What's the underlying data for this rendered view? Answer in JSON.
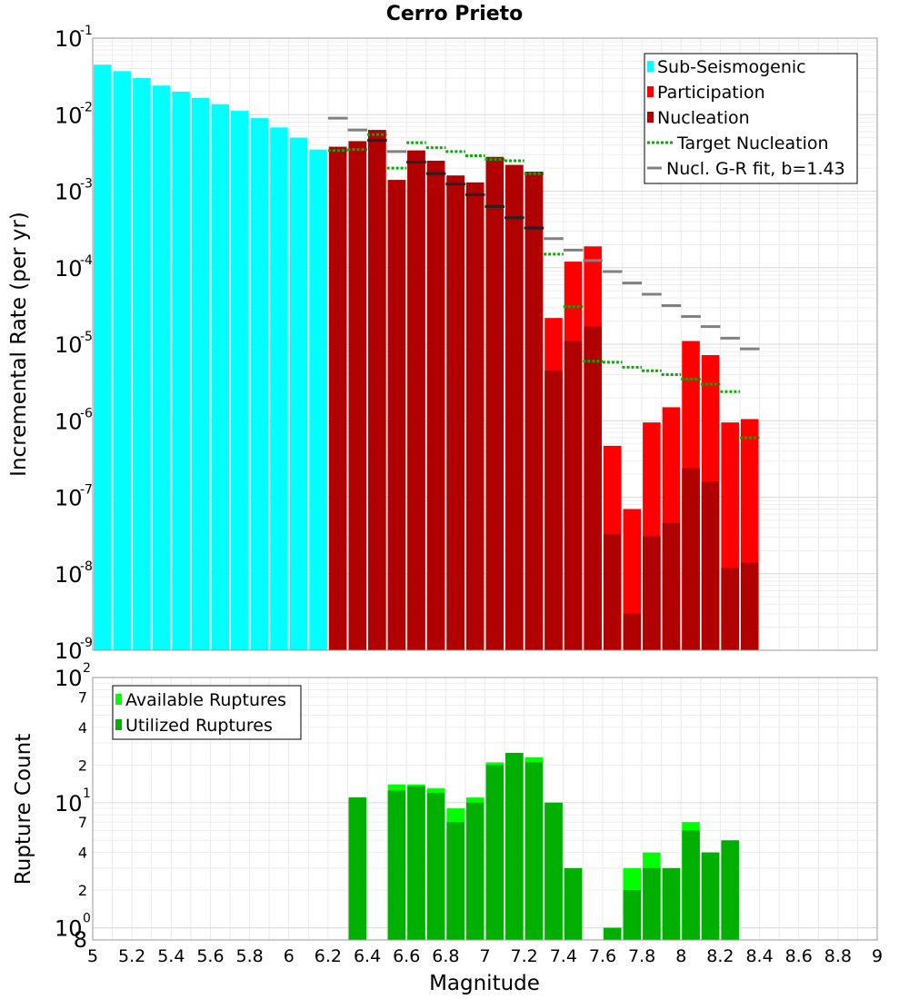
{
  "chart_data": [
    {
      "type": "bar",
      "title": "Cerro Prieto",
      "xlabel": "Magnitude",
      "ylabel": "Incremental Rate (per yr)",
      "yscale": "log",
      "ylim": [
        1e-09,
        0.1
      ],
      "xlim": [
        5.0,
        9.0
      ],
      "grid": true,
      "legend_position": "top-right",
      "bin_width": 0.1,
      "colors": {
        "sub_seismogenic": "#00ffff",
        "participation": "#ff0000",
        "nucleation": "#b00000",
        "target_nucleation": "#00b000",
        "gr_fit": "#808080"
      },
      "legend": [
        "Sub-Seismogenic",
        "Participation",
        "Nucleation",
        "Target Nucleation",
        "Nucl. G-R fit, b=1.43"
      ],
      "y_tick_labels": [
        {
          "base": "10",
          "exp": "-9"
        },
        {
          "base": "10",
          "exp": "-8"
        },
        {
          "base": "10",
          "exp": "-7"
        },
        {
          "base": "10",
          "exp": "-6"
        },
        {
          "base": "10",
          "exp": "-5"
        },
        {
          "base": "10",
          "exp": "-4"
        },
        {
          "base": "10",
          "exp": "-3"
        },
        {
          "base": "10",
          "exp": "-2"
        },
        {
          "base": "10",
          "exp": "-1"
        }
      ],
      "series": [
        {
          "name": "Sub-Seismogenic",
          "x": [
            5.05,
            5.15,
            5.25,
            5.35,
            5.45,
            5.55,
            5.65,
            5.75,
            5.85,
            5.95,
            6.05,
            6.15
          ],
          "values": [
            0.045,
            0.037,
            0.03,
            0.024,
            0.02,
            0.0165,
            0.0137,
            0.0112,
            0.009,
            0.0068,
            0.005,
            0.0035
          ]
        },
        {
          "name": "Participation",
          "x": [
            6.25,
            6.35,
            6.45,
            6.55,
            6.65,
            6.75,
            6.85,
            6.95,
            7.05,
            7.15,
            7.25,
            7.35,
            7.45,
            7.55,
            7.65,
            7.75,
            7.85,
            7.95,
            8.05,
            8.15,
            8.25,
            8.35
          ],
          "values": [
            0.0038,
            0.0045,
            0.0063,
            0.0014,
            0.0034,
            0.0025,
            0.0016,
            0.0013,
            0.0028,
            0.0022,
            0.0018,
            2.2e-05,
            0.00012,
            0.00019,
            4.7e-07,
            7e-08,
            9.5e-07,
            1.5e-06,
            1.1e-05,
            7.2e-06,
            9.5e-07,
            1.05e-06
          ]
        },
        {
          "name": "Nucleation",
          "x": [
            6.25,
            6.35,
            6.45,
            6.55,
            6.65,
            6.75,
            6.85,
            6.95,
            7.05,
            7.15,
            7.25,
            7.35,
            7.45,
            7.55,
            7.65,
            7.75,
            7.85,
            7.95,
            8.05,
            8.15,
            8.25,
            8.35
          ],
          "values": [
            0.0038,
            0.0045,
            0.0063,
            0.0014,
            0.0034,
            0.0025,
            0.0016,
            0.0013,
            0.0028,
            0.0022,
            0.0018,
            4.5e-06,
            1.1e-05,
            1.7e-05,
            3.3e-08,
            3e-09,
            3.1e-08,
            4.6e-08,
            2.4e-07,
            1.6e-07,
            1.2e-08,
            1.4e-08
          ]
        },
        {
          "name": "Target Nucleation",
          "x": [
            6.25,
            6.35,
            6.45,
            6.55,
            6.65,
            6.75,
            6.85,
            6.95,
            7.05,
            7.15,
            7.25,
            7.35,
            7.45,
            7.55,
            7.65,
            7.75,
            7.85,
            7.95,
            8.05,
            8.15,
            8.25,
            8.35
          ],
          "values": [
            0.0034,
            0.0035,
            0.0055,
            0.002,
            0.0043,
            0.0037,
            0.0033,
            0.0029,
            0.0026,
            0.0025,
            0.0017,
            0.00015,
            3.1e-05,
            6e-06,
            5.8e-06,
            5e-06,
            4.5e-06,
            4e-06,
            3.5e-06,
            3e-06,
            2.4e-06,
            6e-07
          ]
        },
        {
          "name": "Nucl. G-R fit, b=1.43",
          "x": [
            6.25,
            6.35,
            6.45,
            6.55,
            6.65,
            6.75,
            6.85,
            6.95,
            7.05,
            7.15,
            7.25,
            7.35,
            7.45,
            7.55,
            7.65,
            7.75,
            7.85,
            7.95,
            8.05,
            8.15,
            8.25,
            8.35
          ],
          "values": [
            0.009,
            0.0063,
            0.0046,
            0.0033,
            0.0024,
            0.0017,
            0.00124,
            0.0009,
            0.00063,
            0.00045,
            0.00033,
            0.00024,
            0.00017,
            0.000124,
            8.9e-05,
            6.3e-05,
            4.5e-05,
            3.2e-05,
            2.3e-05,
            1.7e-05,
            1.2e-05,
            8.7e-06
          ]
        }
      ]
    },
    {
      "type": "bar",
      "xlabel": "Magnitude",
      "ylabel": "Rupture Count",
      "yscale": "log",
      "ylim": [
        0.8,
        100
      ],
      "xlim": [
        5.0,
        9.0
      ],
      "grid": true,
      "legend_position": "top-left",
      "bin_width": 0.1,
      "colors": {
        "available": "#00ff00",
        "utilized": "#00b000"
      },
      "legend": [
        "Available Ruptures",
        "Utilized Ruptures"
      ],
      "x_tick_labels": [
        "5",
        "5.2",
        "5.4",
        "5.6",
        "5.8",
        "6",
        "6.2",
        "6.4",
        "6.6",
        "6.8",
        "7",
        "7.2",
        "7.4",
        "7.6",
        "7.8",
        "8",
        "8.2",
        "8.4",
        "8.6",
        "8.8",
        "9"
      ],
      "y_tick_labels": [
        {
          "label": "10",
          "exp": "2"
        },
        {
          "label": "7"
        },
        {
          "label": "4"
        },
        {
          "label": "2"
        },
        {
          "label": "10",
          "exp": "1"
        },
        {
          "label": "7"
        },
        {
          "label": "4"
        },
        {
          "label": "2"
        },
        {
          "label": "10",
          "exp": "0"
        },
        {
          "label": "8"
        }
      ],
      "series": [
        {
          "name": "Available Ruptures",
          "x": [
            6.35,
            6.55,
            6.65,
            6.75,
            6.85,
            6.95,
            7.05,
            7.15,
            7.25,
            7.35,
            7.45,
            7.65,
            7.75,
            7.85,
            7.95,
            8.05,
            8.15,
            8.25
          ],
          "values": [
            11,
            14,
            14,
            13,
            9,
            11,
            21,
            25,
            23,
            10,
            3,
            1,
            3,
            4,
            3,
            7,
            4,
            5
          ]
        },
        {
          "name": "Utilized Ruptures",
          "x": [
            6.35,
            6.55,
            6.65,
            6.75,
            6.85,
            6.95,
            7.05,
            7.15,
            7.25,
            7.35,
            7.45,
            7.65,
            7.75,
            7.85,
            7.95,
            8.05,
            8.15,
            8.25
          ],
          "values": [
            11,
            12.5,
            13.5,
            12,
            7,
            10,
            20,
            25,
            21,
            10,
            3,
            1,
            2,
            3,
            3,
            6,
            4,
            5
          ]
        }
      ]
    }
  ]
}
